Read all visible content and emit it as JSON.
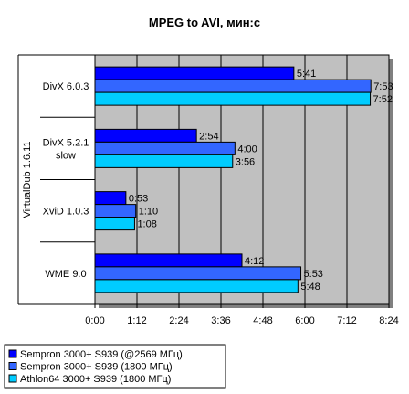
{
  "chart_data": {
    "type": "bar",
    "orientation": "horizontal",
    "title": "MPEG to AVI, мин:с",
    "group_axis_label": "VirtualDub 1.6.11",
    "categories": [
      "DivX 6.0.3",
      "DivX 5.2.1 slow",
      "XviD 1.0.3",
      "WME 9.0"
    ],
    "category_labels": [
      [
        "DivX 6.0.3"
      ],
      [
        "DivX 5.2.1",
        "slow"
      ],
      [
        "XviD 1.0.3"
      ],
      [
        "WME 9.0"
      ]
    ],
    "series": [
      {
        "name": "Sempron 3000+ S939 (@2569 МГц)",
        "color": "#0000FF",
        "values": [
          341,
          174,
          53,
          252
        ],
        "labels": [
          "5:41",
          "2:54",
          "0:53",
          "4:12"
        ]
      },
      {
        "name": "Sempron 3000+ S939 (1800 МГц)",
        "color": "#3366FF",
        "values": [
          473,
          240,
          70,
          353
        ],
        "labels": [
          "7:53",
          "4:00",
          "1:10",
          "5:53"
        ]
      },
      {
        "name": "Athlon64 3000+ S939 (1800 МГц)",
        "color": "#00CCFF",
        "values": [
          472,
          236,
          68,
          348
        ],
        "labels": [
          "7:52",
          "3:56",
          "1:08",
          "5:48"
        ]
      }
    ],
    "x_range": [
      0,
      504
    ],
    "x_ticks": [
      0,
      72,
      144,
      216,
      288,
      360,
      432,
      504
    ],
    "x_tick_labels": [
      "0:00",
      "1:12",
      "2:24",
      "3:36",
      "4:48",
      "6:00",
      "7:12",
      "8:24"
    ],
    "grid": "vertical",
    "legend_position": "bottom-left",
    "plot_background": "#C0C0C0"
  }
}
